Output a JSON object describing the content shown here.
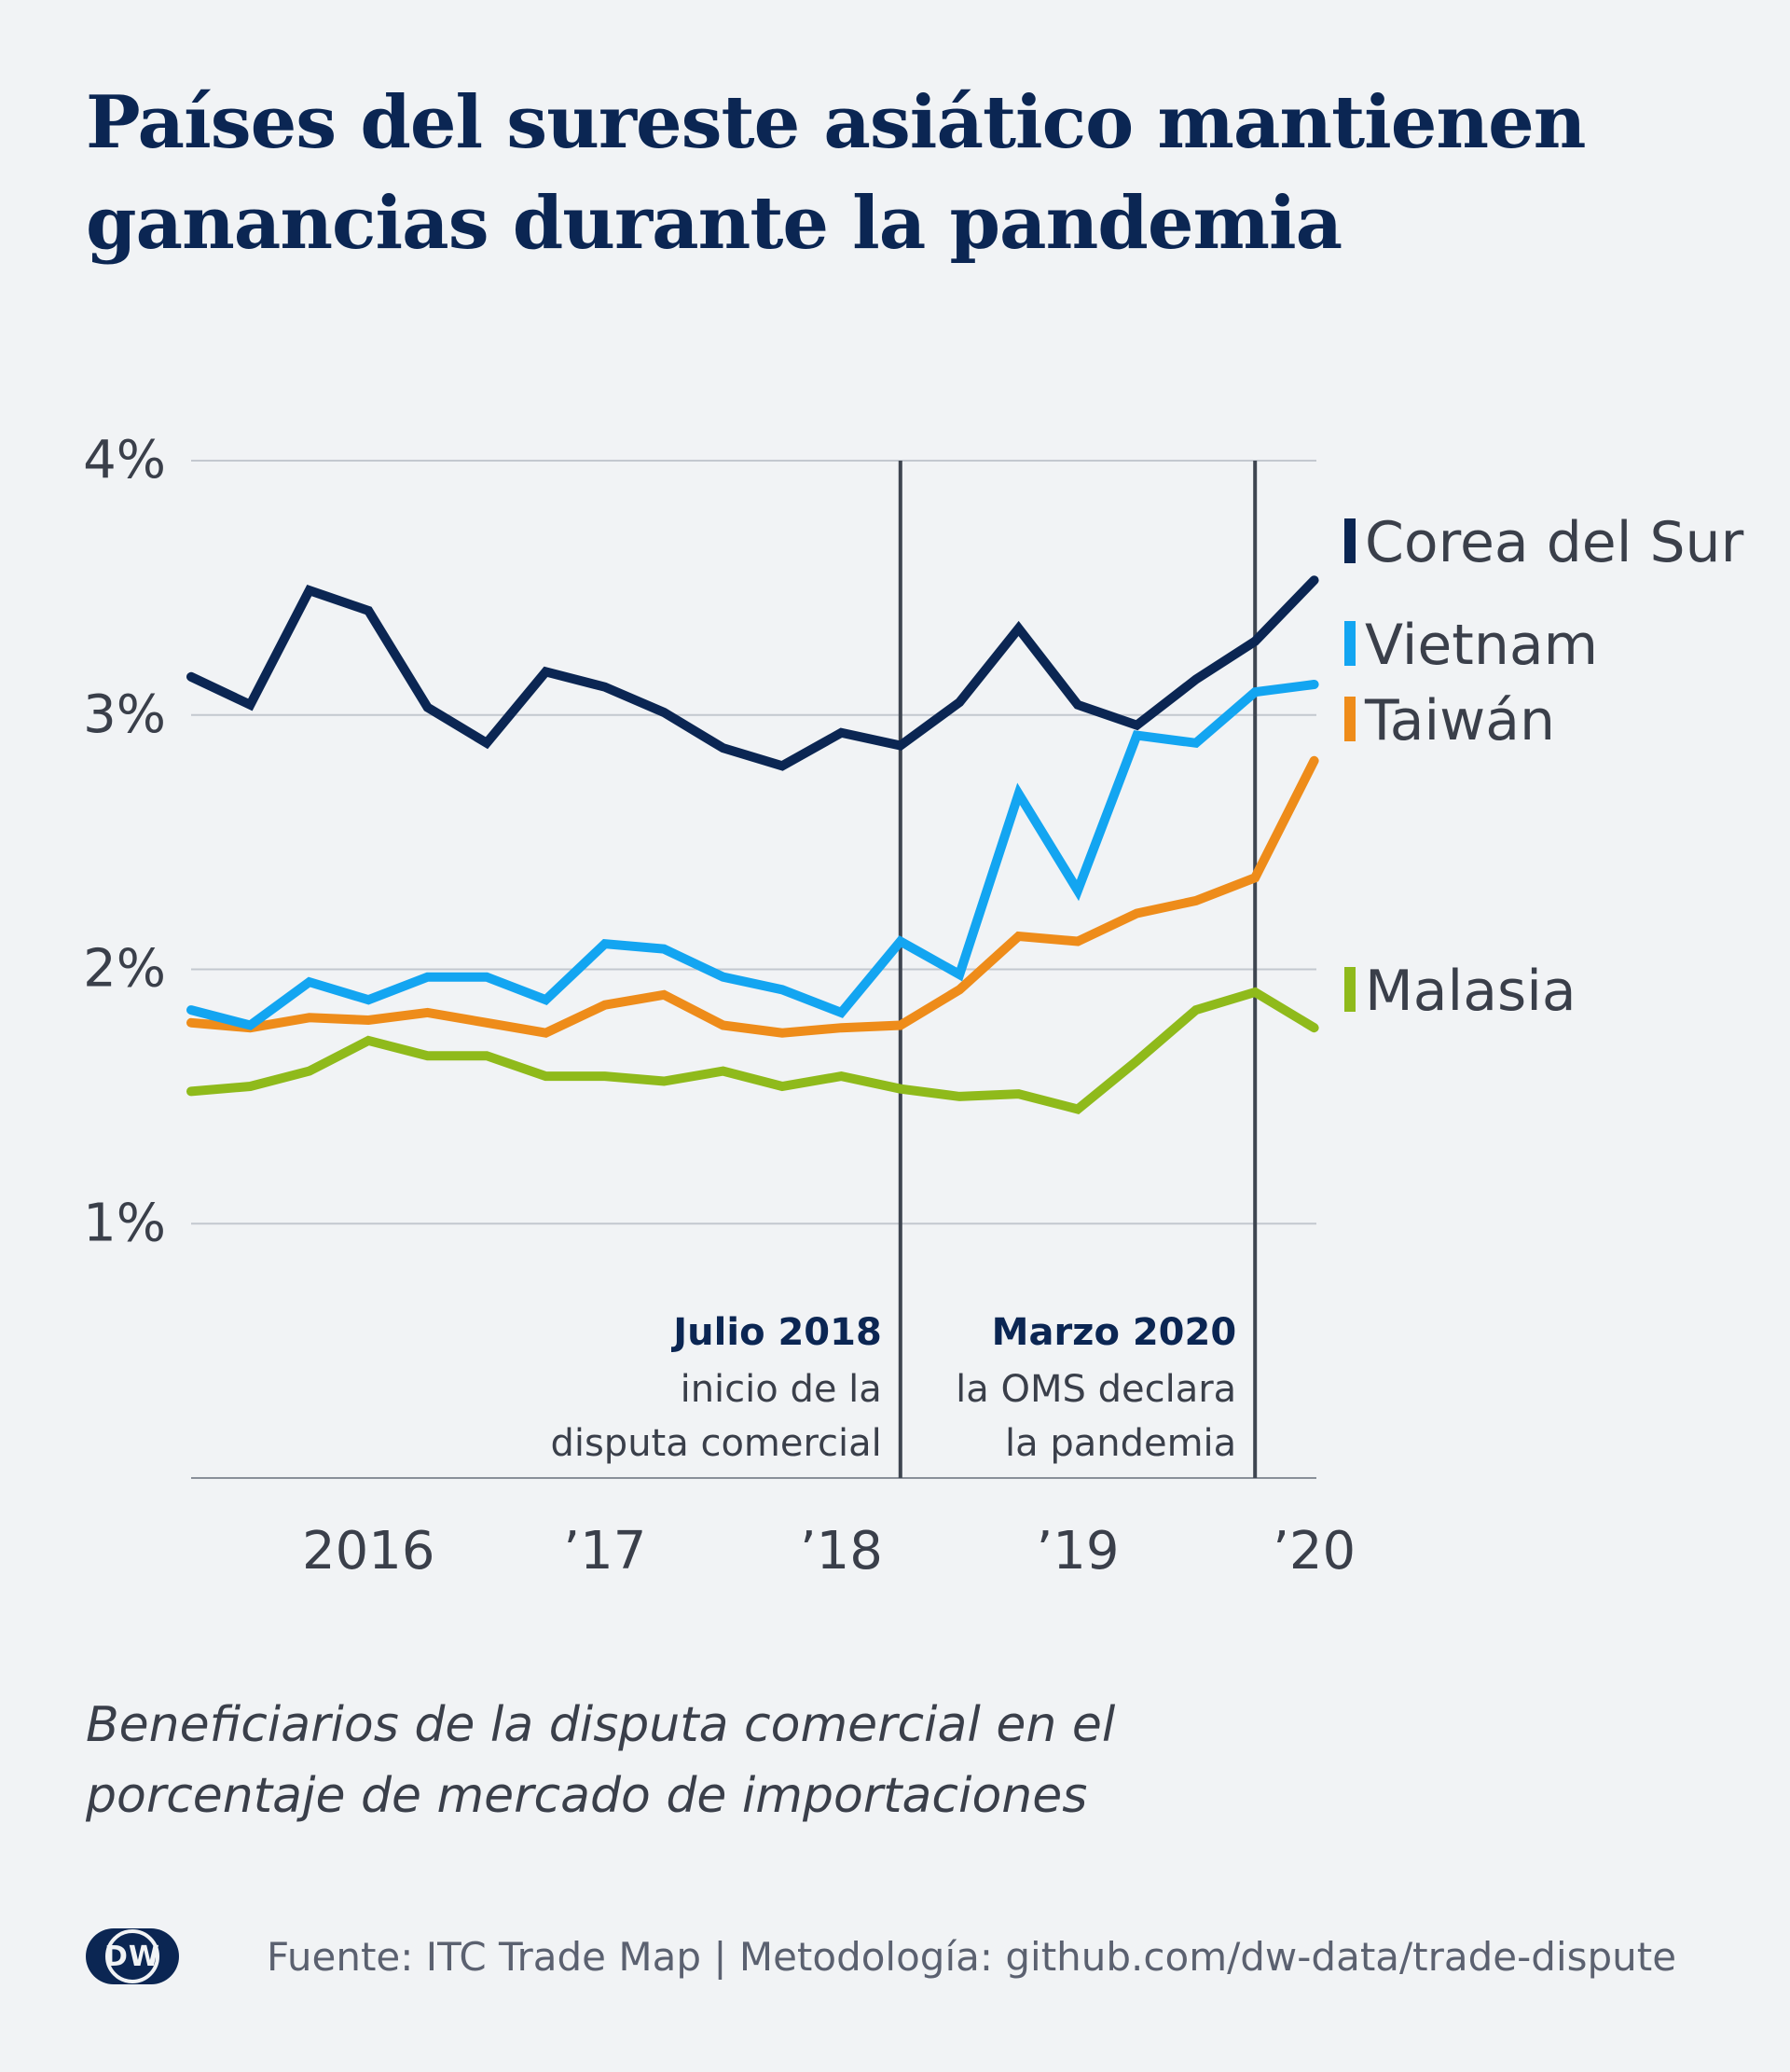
{
  "header": {
    "title_lines": [
      "Países del sureste asiático mantienen",
      "ganancias durante la pandemia"
    ]
  },
  "chart_data": {
    "type": "line",
    "x": [
      "2015-Q3",
      "2015-Q4",
      "2016-Q1",
      "2016-Q2",
      "2016-Q3",
      "2016-Q4",
      "2017-Q1",
      "2017-Q2",
      "2017-Q3",
      "2017-Q4",
      "2018-Q1",
      "2018-Q2",
      "2018-Q3",
      "2018-Q4",
      "2019-Q1",
      "2019-Q2",
      "2019-Q3",
      "2019-Q4",
      "2020-Q1",
      "2020-Q2"
    ],
    "x_tick_labels": [
      {
        "label": "2016",
        "x": "2016-Q2"
      },
      {
        "label": "’17",
        "x": "2017-Q2"
      },
      {
        "label": "’18",
        "x": "2018-Q2"
      },
      {
        "label": "’19",
        "x": "2019-Q2"
      },
      {
        "label": "’20",
        "x": "2020-Q2"
      }
    ],
    "y_ticks": [
      {
        "value": 4,
        "label": "4%"
      },
      {
        "value": 3,
        "label": "3%"
      },
      {
        "value": 2,
        "label": "2%"
      },
      {
        "value": 1,
        "label": "1%"
      }
    ],
    "ylim": [
      0,
      4
    ],
    "grid": true,
    "legend_placement": "right",
    "series": [
      {
        "name": "Corea del Sur",
        "color": "#0b2653",
        "values": [
          3.15,
          3.04,
          3.49,
          3.41,
          3.03,
          2.89,
          3.17,
          3.11,
          3.01,
          2.87,
          2.8,
          2.93,
          2.88,
          3.05,
          3.34,
          3.04,
          2.96,
          3.14,
          3.29,
          3.53
        ]
      },
      {
        "name": "Vietnam",
        "color": "#13a5f1",
        "values": [
          1.84,
          1.78,
          1.95,
          1.88,
          1.97,
          1.97,
          1.88,
          2.1,
          2.08,
          1.97,
          1.92,
          1.83,
          2.11,
          1.98,
          2.69,
          2.31,
          2.92,
          2.89,
          3.09,
          3.12
        ]
      },
      {
        "name": "Taiwán",
        "color": "#ee8c1a",
        "values": [
          1.79,
          1.77,
          1.81,
          1.8,
          1.83,
          1.79,
          1.75,
          1.86,
          1.9,
          1.78,
          1.75,
          1.77,
          1.78,
          1.92,
          2.13,
          2.11,
          2.22,
          2.27,
          2.36,
          2.82
        ]
      },
      {
        "name": "Malasia",
        "color": "#8fba1b",
        "values": [
          1.52,
          1.54,
          1.6,
          1.72,
          1.66,
          1.66,
          1.58,
          1.58,
          1.56,
          1.6,
          1.54,
          1.58,
          1.53,
          1.5,
          1.51,
          1.45,
          1.64,
          1.84,
          1.91,
          1.77
        ]
      }
    ],
    "annotations": [
      {
        "x": "2018-Q3",
        "title": "Julio 2018",
        "lines": [
          "inicio de la",
          "disputa comercial"
        ]
      },
      {
        "x": "2020-Q1",
        "title": "Marzo 2020",
        "lines": [
          "la OMS declara",
          "la pandemia"
        ]
      }
    ]
  },
  "subtitle_lines": [
    "Beneficiarios de la disputa comercial en el",
    "porcentaje de mercado de importaciones"
  ],
  "footer": {
    "logo_text": "DW",
    "source": "Fuente: ITC Trade Map | Metodología: github.com/dw-data/trade-dispute"
  }
}
